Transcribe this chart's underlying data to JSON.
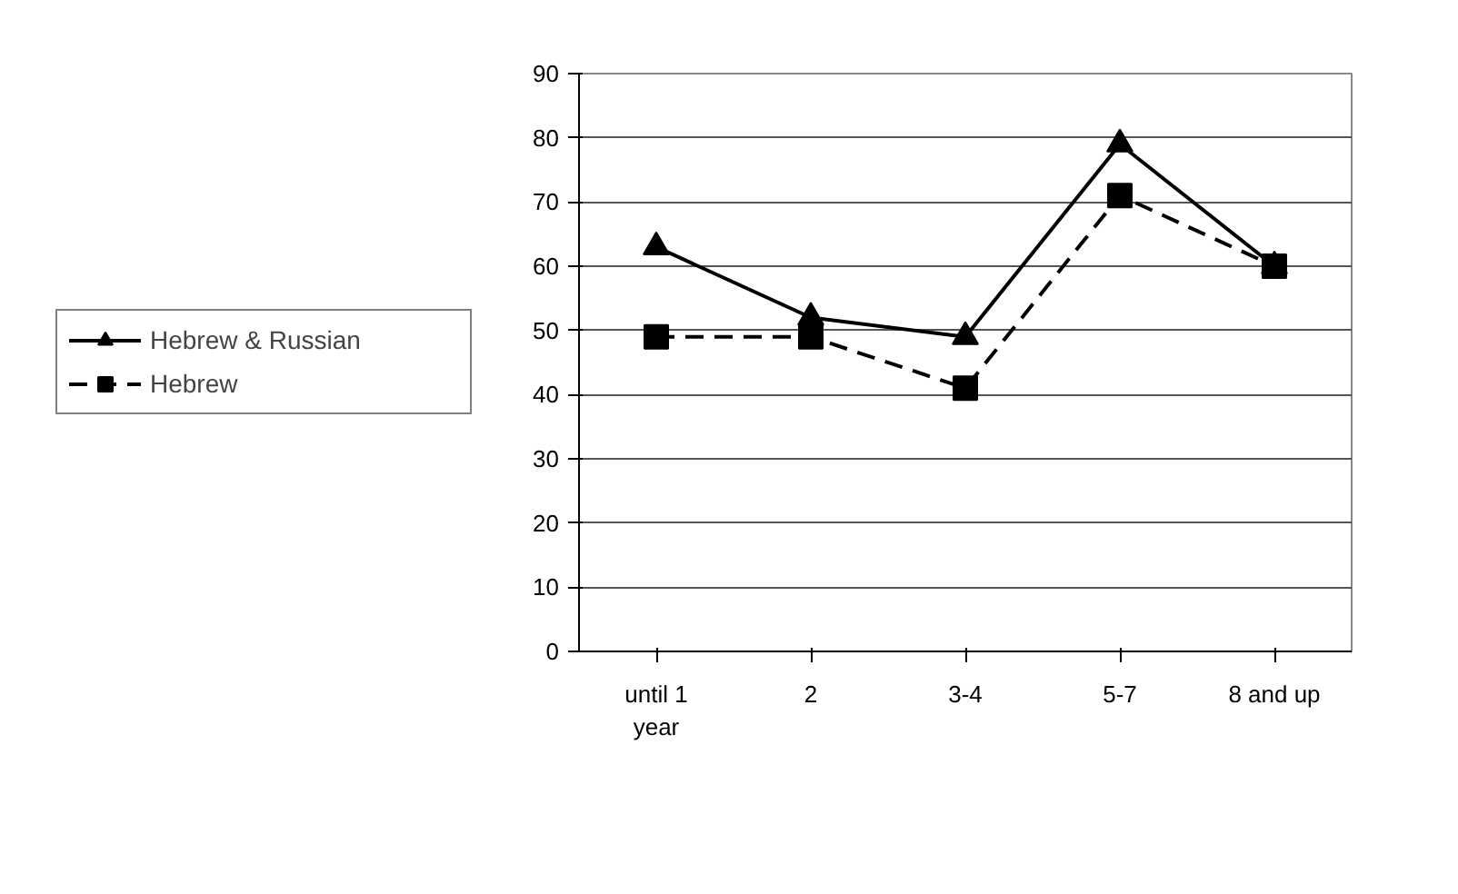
{
  "chart_data": {
    "type": "line",
    "categories": [
      "until 1 year",
      "2",
      "3-4",
      "5-7",
      "8 and up"
    ],
    "series": [
      {
        "name": "Hebrew & Russian",
        "color": "#000000",
        "values": [
          63,
          52,
          49,
          79,
          60
        ],
        "marker": "triangle",
        "line_style": "solid"
      },
      {
        "name": "Hebrew",
        "color": "#000000",
        "values": [
          49,
          49,
          41,
          71,
          60
        ],
        "marker": "square",
        "line_style": "dashed"
      }
    ],
    "ylim": [
      0,
      90
    ],
    "yticks": [
      0,
      10,
      20,
      30,
      40,
      50,
      60,
      70,
      80,
      90
    ],
    "grid": "y",
    "legend": "left"
  }
}
